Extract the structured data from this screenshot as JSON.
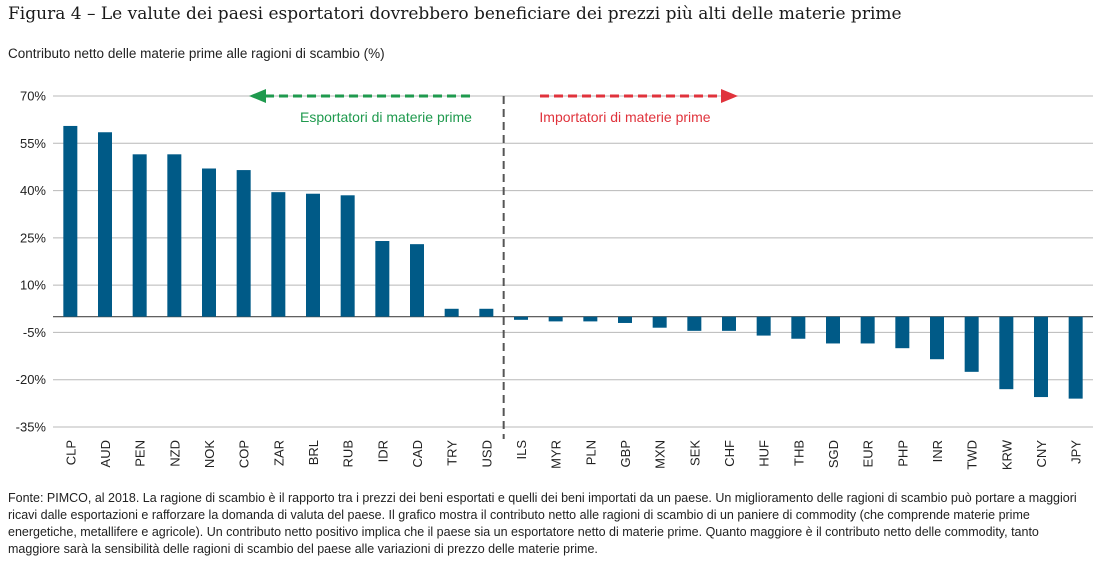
{
  "title": "Figura 4 – Le valute dei paesi esportatori dovrebbero beneficiare dei prezzi più alti delle materie prime",
  "colors": {
    "bar": "#005a87",
    "exporter": "#1f9a4e",
    "importer": "#e0333c",
    "grid": "#b8b8b8",
    "divider": "#555555"
  },
  "chart_data": {
    "type": "bar",
    "title": "Figura 4 – Le valute dei paesi esportatori dovrebbero beneficiare dei prezzi più alti delle materie prime",
    "ylabel": "Contributo netto delle materie prime alle ragioni di scambio (%)",
    "xlabel": "",
    "ylim": [
      -35,
      70
    ],
    "yticks": [
      70,
      55,
      40,
      25,
      10,
      -5,
      -20,
      -35
    ],
    "ytick_labels": [
      "70%",
      "55%",
      "40%",
      "25%",
      "10%",
      "-5%",
      "-20%",
      "-35%"
    ],
    "grid": true,
    "categories": [
      "CLP",
      "AUD",
      "PEN",
      "NZD",
      "NOK",
      "COP",
      "ZAR",
      "BRL",
      "RUB",
      "IDR",
      "CAD",
      "TRY",
      "USD",
      "ILS",
      "MYR",
      "PLN",
      "GBP",
      "MXN",
      "SEK",
      "CHF",
      "HUF",
      "THB",
      "SGD",
      "EUR",
      "PHP",
      "INR",
      "TWD",
      "KRW",
      "CNY",
      "JPY"
    ],
    "values": [
      60.5,
      58.5,
      51.5,
      51.5,
      47,
      46.5,
      39.5,
      39,
      38.5,
      24,
      23,
      2.5,
      2.5,
      -1,
      -1.5,
      -1.5,
      -2,
      -3.5,
      -4.5,
      -4.5,
      -6,
      -7,
      -8.5,
      -8.5,
      -10,
      -13.5,
      -17.5,
      -23,
      -25.5,
      -26
    ],
    "annotations": {
      "exporters": "Esportatori di materie prime",
      "importers": "Importatori di materie prime"
    },
    "divider_after": "USD"
  },
  "footnote": "Fonte: PIMCO, al 2018. La ragione di scambio è il rapporto tra i prezzi dei beni esportati e quelli dei beni importati da un paese. Un miglioramento delle ragioni di scambio può portare a maggiori ricavi dalle esportazioni e rafforzare la domanda di valuta del paese. Il grafico mostra il contributo netto alle ragioni di scambio di un paniere di commodity (che comprende materie prime energetiche, metallifere e agricole). Un contributo netto positivo implica che il paese sia un esportatore netto di materie prime. Quanto maggiore è il contributo netto delle commodity, tanto maggiore sarà la sensibilità delle ragioni di scambio del paese alle variazioni di prezzo delle materie prime."
}
